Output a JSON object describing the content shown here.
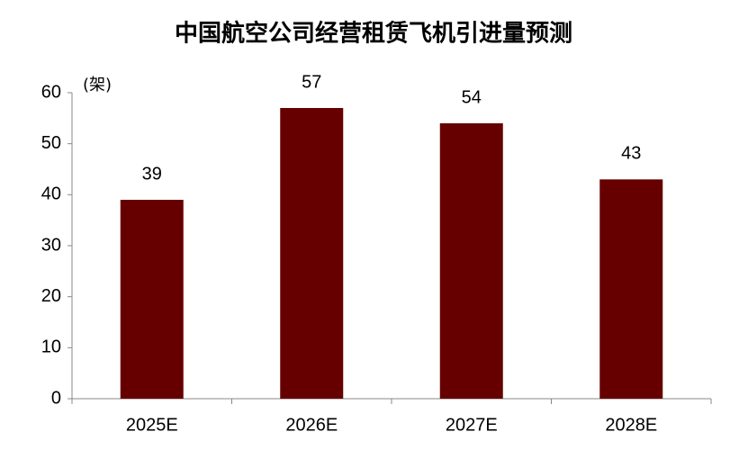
{
  "chart_data": {
    "type": "bar",
    "title": "中国航空公司经营租赁飞机引进量预测",
    "y_label": "(架)",
    "categories": [
      "2025E",
      "2026E",
      "2027E",
      "2028E"
    ],
    "values": [
      39,
      57,
      54,
      43
    ],
    "color": "#660000",
    "ylim": [
      0,
      60
    ],
    "yticks": [
      0,
      10,
      20,
      30,
      40,
      50,
      60
    ],
    "grid": false
  }
}
